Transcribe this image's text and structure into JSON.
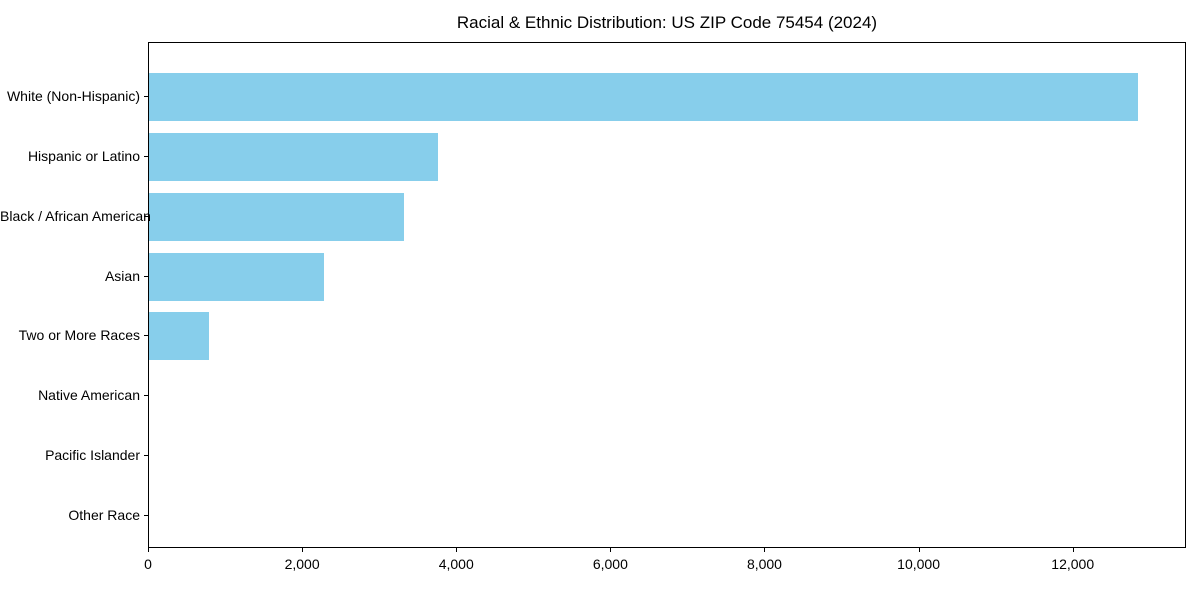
{
  "title": "Racial & Ethnic Distribution: US ZIP Code 75454 (2024)",
  "chart_data": {
    "type": "bar",
    "orientation": "horizontal",
    "title": "Racial & Ethnic Distribution: US ZIP Code 75454 (2024)",
    "xlabel": "",
    "ylabel": "",
    "categories": [
      "White (Non-Hispanic)",
      "Hispanic or Latino",
      "Black / African American",
      "Asian",
      "Two or More Races",
      "Native American",
      "Pacific Islander",
      "Other Race"
    ],
    "values": [
      12830,
      3755,
      3310,
      2270,
      785,
      0,
      0,
      0
    ],
    "xlim": [
      0,
      13470
    ],
    "x_ticks": [
      0,
      2000,
      4000,
      6000,
      8000,
      10000,
      12000
    ],
    "x_tick_labels": [
      "0",
      "2,000",
      "4,000",
      "6,000",
      "8,000",
      "10,000",
      "12,000"
    ],
    "grid": false,
    "legend": null,
    "bar_color": "#87CEEB",
    "axis_color": "#000000",
    "background_color": "#ffffff"
  }
}
